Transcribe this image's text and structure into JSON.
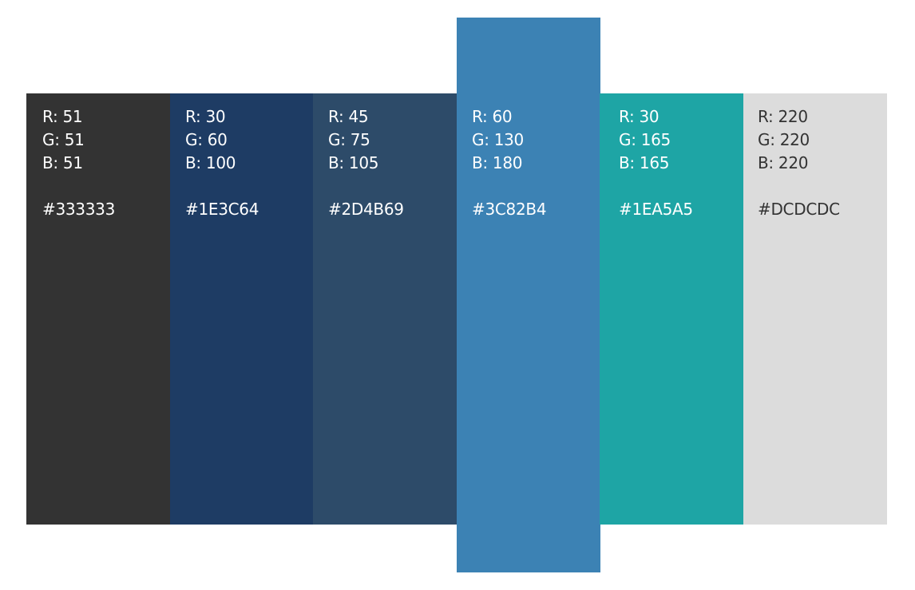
{
  "swatches": [
    {
      "r": "R: 51",
      "g": "G: 51",
      "b": "B: 51",
      "hex": "#333333",
      "bg": "#333333",
      "fg": "#ffffff"
    },
    {
      "r": "R: 30",
      "g": "G: 60",
      "b": "B: 100",
      "hex": "#1E3C64",
      "bg": "#1E3C64",
      "fg": "#ffffff"
    },
    {
      "r": "R: 45",
      "g": "G: 75",
      "b": "B: 105",
      "hex": "#2D4B69",
      "bg": "#2D4B69",
      "fg": "#ffffff"
    },
    {
      "r": "R: 60",
      "g": "G: 130",
      "b": "B: 180",
      "hex": "#3C82B4",
      "bg": "#3C82B4",
      "fg": "#ffffff"
    },
    {
      "r": "R: 30",
      "g": "G: 165",
      "b": "B: 165",
      "hex": "#1EA5A5",
      "bg": "#1EA5A5",
      "fg": "#ffffff"
    },
    {
      "r": "R: 220",
      "g": "G: 220",
      "b": "B: 220",
      "hex": "#DCDCDC",
      "bg": "#DCDCDC",
      "fg": "#333333"
    }
  ]
}
